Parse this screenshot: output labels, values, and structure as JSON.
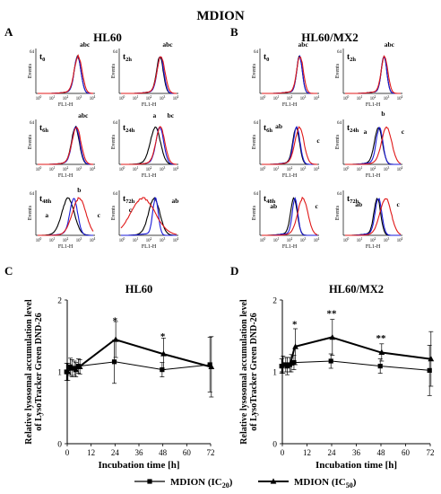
{
  "figure_title": "MDION",
  "colors": {
    "black": "#000000",
    "blue": "#1a1ad8",
    "red": "#e01818"
  },
  "panel_a": {
    "letter": "A",
    "title": "HL60",
    "histograms": [
      {
        "time": "t",
        "sub": "0",
        "annotations": [
          {
            "text": "abc",
            "dx": 8,
            "dy": -22
          }
        ]
      },
      {
        "time": "t",
        "sub": "2h",
        "annotations": [
          {
            "text": "abc",
            "dx": 8,
            "dy": -22
          }
        ]
      },
      {
        "time": "t",
        "sub": "6h",
        "annotations": [
          {
            "text": "abc",
            "dx": 8,
            "dy": -22
          }
        ]
      },
      {
        "time": "t",
        "sub": "24h",
        "annotations": [
          {
            "text": "a",
            "dx": -6,
            "dy": -22
          },
          {
            "text": "bc",
            "dx": 12,
            "dy": -22
          }
        ]
      },
      {
        "time": "t",
        "sub": "48h",
        "annotations": [
          {
            "text": "a",
            "dx": -30,
            "dy": 10
          },
          {
            "text": "b",
            "dx": 6,
            "dy": -18
          },
          {
            "text": "c",
            "dx": 28,
            "dy": 10
          }
        ]
      },
      {
        "time": "t",
        "sub": "72h",
        "annotations": [
          {
            "text": "c",
            "dx": -28,
            "dy": 4
          },
          {
            "text": "ab",
            "dx": 22,
            "dy": -6
          }
        ]
      }
    ]
  },
  "panel_b": {
    "letter": "B",
    "title": "HL60/MX2",
    "histograms": [
      {
        "time": "t",
        "sub": "0",
        "annotations": [
          {
            "text": "abc",
            "dx": 4,
            "dy": -22
          }
        ]
      },
      {
        "time": "t",
        "sub": "2h",
        "annotations": [
          {
            "text": "abc",
            "dx": 6,
            "dy": -22
          }
        ]
      },
      {
        "time": "t",
        "sub": "6h",
        "annotations": [
          {
            "text": "ab",
            "dx": -20,
            "dy": -10
          },
          {
            "text": "c",
            "dx": 24,
            "dy": 6
          }
        ]
      },
      {
        "time": "t",
        "sub": "24h",
        "annotations": [
          {
            "text": "a",
            "dx": -16,
            "dy": -4
          },
          {
            "text": "b",
            "dx": 4,
            "dy": -24
          },
          {
            "text": "c",
            "dx": 26,
            "dy": -4
          }
        ]
      },
      {
        "time": "t",
        "sub": "48h",
        "annotations": [
          {
            "text": "ab",
            "dx": -24,
            "dy": 0
          },
          {
            "text": "c",
            "dx": 24,
            "dy": 0
          }
        ]
      },
      {
        "time": "t",
        "sub": "72h",
        "annotations": [
          {
            "text": "ab",
            "dx": -22,
            "dy": -2
          },
          {
            "text": "c",
            "dx": 22,
            "dy": -2
          }
        ]
      }
    ]
  },
  "hist_axes": {
    "ylabel": "Events",
    "xlabel": "FL1-H",
    "ymax_label": "64",
    "xtick_base": "10",
    "xtick_exps": [
      "0",
      "1",
      "2",
      "3",
      "4"
    ]
  },
  "chart_data": [
    {
      "type": "line",
      "panel": "C",
      "title": "HL60",
      "xlabel": "Incubation time [h]",
      "ylabel": "Relative lysosomal accumulation level of LysoTracker Green DND-26",
      "xlim": [
        0,
        72
      ],
      "ylim": [
        0,
        2
      ],
      "xticks": [
        0,
        12,
        24,
        36,
        48,
        60,
        72
      ],
      "yticks": [
        0,
        1,
        2
      ],
      "series": [
        {
          "name": "MDION (IC20)",
          "marker": "square",
          "x": [
            0,
            2,
            4,
            6,
            24,
            48,
            72
          ],
          "y": [
            1.0,
            1.07,
            1.05,
            1.08,
            1.14,
            1.03,
            1.1
          ],
          "err": [
            0.12,
            0.12,
            0.1,
            0.1,
            0.3,
            0.1,
            0.38
          ]
        },
        {
          "name": "MDION (IC50)",
          "marker": "triangle",
          "x": [
            0,
            2,
            4,
            6,
            24,
            48,
            72
          ],
          "y": [
            1.0,
            1.05,
            1.03,
            1.07,
            1.45,
            1.25,
            1.07
          ],
          "err": [
            0.12,
            0.12,
            0.1,
            0.1,
            0.25,
            0.22,
            0.42
          ]
        }
      ],
      "annotations": [
        {
          "x": 24,
          "y": 1.73,
          "text": "*"
        },
        {
          "x": 48,
          "y": 1.51,
          "text": "*"
        }
      ]
    },
    {
      "type": "line",
      "panel": "D",
      "title": "HL60/MX2",
      "xlabel": "Incubation time [h]",
      "ylabel": "Relative lysosomal accumulation level of LysoTracker Green DND-26",
      "xlim": [
        0,
        72
      ],
      "ylim": [
        0,
        2
      ],
      "xticks": [
        0,
        12,
        24,
        36,
        48,
        60,
        72
      ],
      "yticks": [
        0,
        1,
        2
      ],
      "series": [
        {
          "name": "MDION (IC20)",
          "marker": "square",
          "x": [
            0,
            2,
            4,
            6,
            24,
            48,
            72
          ],
          "y": [
            1.08,
            1.1,
            1.1,
            1.13,
            1.15,
            1.08,
            1.02
          ],
          "err": [
            0.1,
            0.1,
            0.1,
            0.1,
            0.1,
            0.1,
            0.35
          ]
        },
        {
          "name": "MDION (IC50)",
          "marker": "triangle",
          "x": [
            0,
            2,
            4,
            6,
            24,
            48,
            72
          ],
          "y": [
            1.1,
            1.08,
            1.12,
            1.35,
            1.48,
            1.27,
            1.18
          ],
          "err": [
            0.12,
            0.12,
            0.12,
            0.25,
            0.25,
            0.12,
            0.38
          ]
        }
      ],
      "annotations": [
        {
          "x": 6,
          "y": 1.68,
          "text": "*"
        },
        {
          "x": 24,
          "y": 1.83,
          "text": "**"
        },
        {
          "x": 48,
          "y": 1.49,
          "text": "**"
        }
      ]
    }
  ],
  "legend": [
    {
      "name": "MDION (IC",
      "sub": "20",
      "tail": ")",
      "marker": "square"
    },
    {
      "name": "MDION (IC",
      "sub": "50",
      "tail": ")",
      "marker": "triangle"
    }
  ]
}
